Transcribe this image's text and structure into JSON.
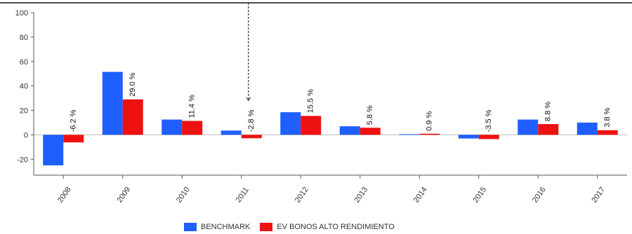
{
  "chart_data": {
    "type": "bar",
    "categories": [
      "2008",
      "2009",
      "2010",
      "2011",
      "2012",
      "2013",
      "2014",
      "2015",
      "2016",
      "2017"
    ],
    "series": [
      {
        "name": "BENCHMARK",
        "values": [
          -25.0,
          51.5,
          12.5,
          3.5,
          18.5,
          7.0,
          0.5,
          -3.0,
          12.5,
          10.0
        ],
        "color": "#1f5fff"
      },
      {
        "name": "EV BONOS ALTO RENDIMIENTO",
        "values": [
          -6.2,
          29.0,
          11.4,
          -2.8,
          15.5,
          5.8,
          0.9,
          -3.5,
          8.8,
          3.8
        ],
        "color": "#ee1111"
      }
    ],
    "data_labels": [
      "-6.2 %",
      "29.0 %",
      "11.4 %",
      "-2.8 %",
      "15.5 %",
      "5.8 %",
      "0.9 %",
      "-3.5 %",
      "8.8 %",
      "3.8 %"
    ],
    "yticks": [
      -20,
      0,
      20,
      40,
      60,
      80,
      100
    ],
    "ylim": [
      -33,
      100
    ],
    "grid": false,
    "legend_position": "bottom",
    "annotation": "dashed vertical marker at 2011"
  }
}
